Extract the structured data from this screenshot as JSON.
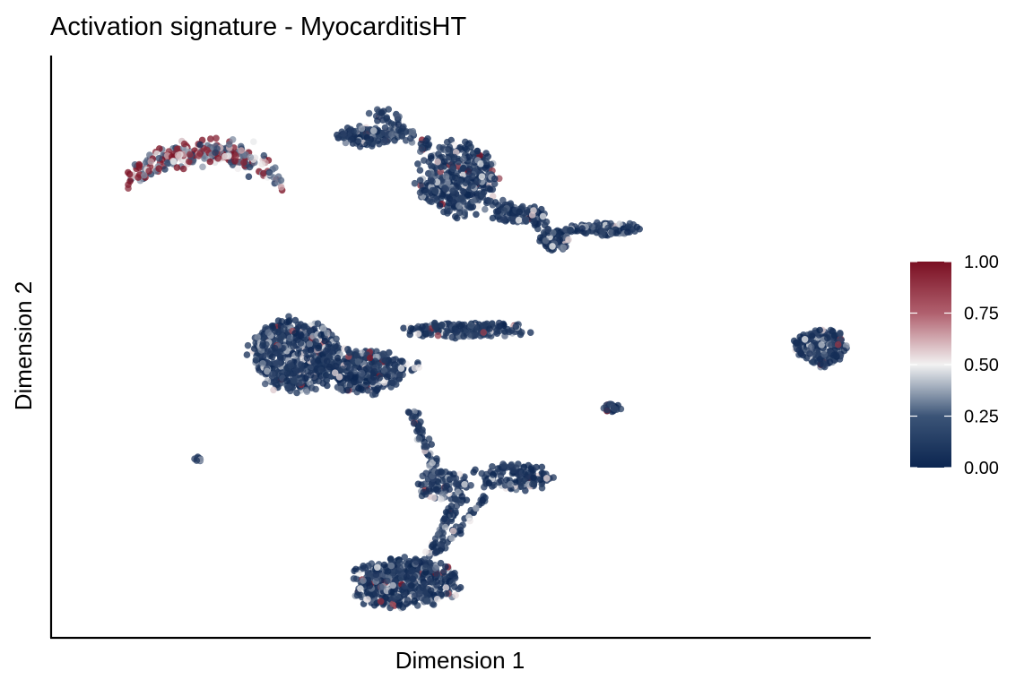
{
  "chart_data": {
    "type": "scatter",
    "title": "Activation signature - MyocarditisHT",
    "xlabel": "Dimension 1",
    "ylabel": "Dimension 2",
    "xlim": [
      0,
      100
    ],
    "ylim": [
      0,
      100
    ],
    "axis_ticks": false,
    "grid": false,
    "legend": {
      "type": "colorbar",
      "placement": "right",
      "min": 0.0,
      "max": 1.0,
      "ticks": [
        "1.00",
        "0.75",
        "0.50",
        "0.25",
        "0.00"
      ],
      "colors": {
        "low": "#0b2550",
        "mid": "#f2f2f2",
        "high": "#7a0f22"
      }
    },
    "clusters": [
      {
        "cx": 18.6,
        "cy": 81.5,
        "rx": 9.5,
        "ry": 2.5,
        "n": 260,
        "shape": "arc",
        "bend": 4.5,
        "mean_score": 0.55
      },
      {
        "cx": 38.5,
        "cy": 86.7,
        "rx": 4.0,
        "ry": 1.8,
        "n": 120,
        "shape": "blob",
        "mean_score": 0.06
      },
      {
        "cx": 49.5,
        "cy": 79.0,
        "rx": 5.0,
        "ry": 6.5,
        "n": 450,
        "shape": "blob",
        "mean_score": 0.05
      },
      {
        "cx": 57.0,
        "cy": 73.0,
        "rx": 3.5,
        "ry": 1.5,
        "n": 80,
        "shape": "blob",
        "mean_score": 0.05
      },
      {
        "cx": 61.5,
        "cy": 68.7,
        "rx": 2.0,
        "ry": 2.0,
        "n": 90,
        "shape": "blob",
        "mean_score": 0.05
      },
      {
        "cx": 67.5,
        "cy": 70.5,
        "rx": 4.5,
        "ry": 1.2,
        "n": 90,
        "shape": "blob",
        "mean_score": 0.06
      },
      {
        "cx": 29.5,
        "cy": 48.5,
        "rx": 5.5,
        "ry": 6.5,
        "n": 600,
        "shape": "blob",
        "mean_score": 0.08
      },
      {
        "cx": 38.0,
        "cy": 46.0,
        "rx": 5.0,
        "ry": 4.0,
        "n": 300,
        "shape": "blob",
        "mean_score": 0.08
      },
      {
        "cx": 50.5,
        "cy": 53.0,
        "rx": 8.0,
        "ry": 1.4,
        "n": 200,
        "shape": "blob",
        "mean_score": 0.06
      },
      {
        "cx": 94.3,
        "cy": 50.0,
        "rx": 3.3,
        "ry": 3.5,
        "n": 220,
        "shape": "blob",
        "mean_score": 0.05
      },
      {
        "cx": 68.5,
        "cy": 39.5,
        "rx": 1.2,
        "ry": 0.7,
        "n": 30,
        "shape": "blob",
        "mean_score": 0.1
      },
      {
        "cx": 17.7,
        "cy": 30.5,
        "rx": 0.6,
        "ry": 0.4,
        "n": 8,
        "shape": "blob",
        "mean_score": 0.05
      },
      {
        "cx": 56.5,
        "cy": 27.5,
        "rx": 5.0,
        "ry": 2.5,
        "n": 140,
        "shape": "blob",
        "mean_score": 0.07
      },
      {
        "cx": 47.5,
        "cy": 26.0,
        "rx": 3.5,
        "ry": 3.0,
        "n": 80,
        "shape": "blob",
        "mean_score": 0.1
      },
      {
        "cx": 43.0,
        "cy": 9.0,
        "rx": 7.0,
        "ry": 4.5,
        "n": 500,
        "shape": "blob",
        "mean_score": 0.05
      }
    ],
    "bridges": [
      {
        "from": [
          44.0,
          39.0
        ],
        "to": [
          47.0,
          28.0
        ],
        "n": 60,
        "spread": 0.7,
        "mean_score": 0.1
      },
      {
        "from": [
          50.0,
          24.0
        ],
        "to": [
          46.0,
          14.0
        ],
        "n": 60,
        "spread": 0.7,
        "mean_score": 0.1
      },
      {
        "from": [
          53.0,
          24.0
        ],
        "to": [
          47.0,
          14.0
        ],
        "n": 40,
        "spread": 0.6,
        "mean_score": 0.1
      },
      {
        "from": [
          40.0,
          91.0
        ],
        "to": [
          46.0,
          84.0
        ],
        "n": 60,
        "spread": 1.2,
        "mean_score": 0.05
      },
      {
        "from": [
          53.5,
          76.0
        ],
        "to": [
          60.0,
          71.0
        ],
        "n": 40,
        "spread": 0.8,
        "mean_score": 0.05
      },
      {
        "from": [
          63.0,
          70.5
        ],
        "to": [
          64.0,
          70.5
        ],
        "n": 15,
        "spread": 0.6,
        "mean_score": 0.05
      },
      {
        "from": [
          38.0,
          44.0
        ],
        "to": [
          45.0,
          47.0
        ],
        "n": 30,
        "spread": 1.0,
        "mean_score": 0.08
      }
    ]
  }
}
